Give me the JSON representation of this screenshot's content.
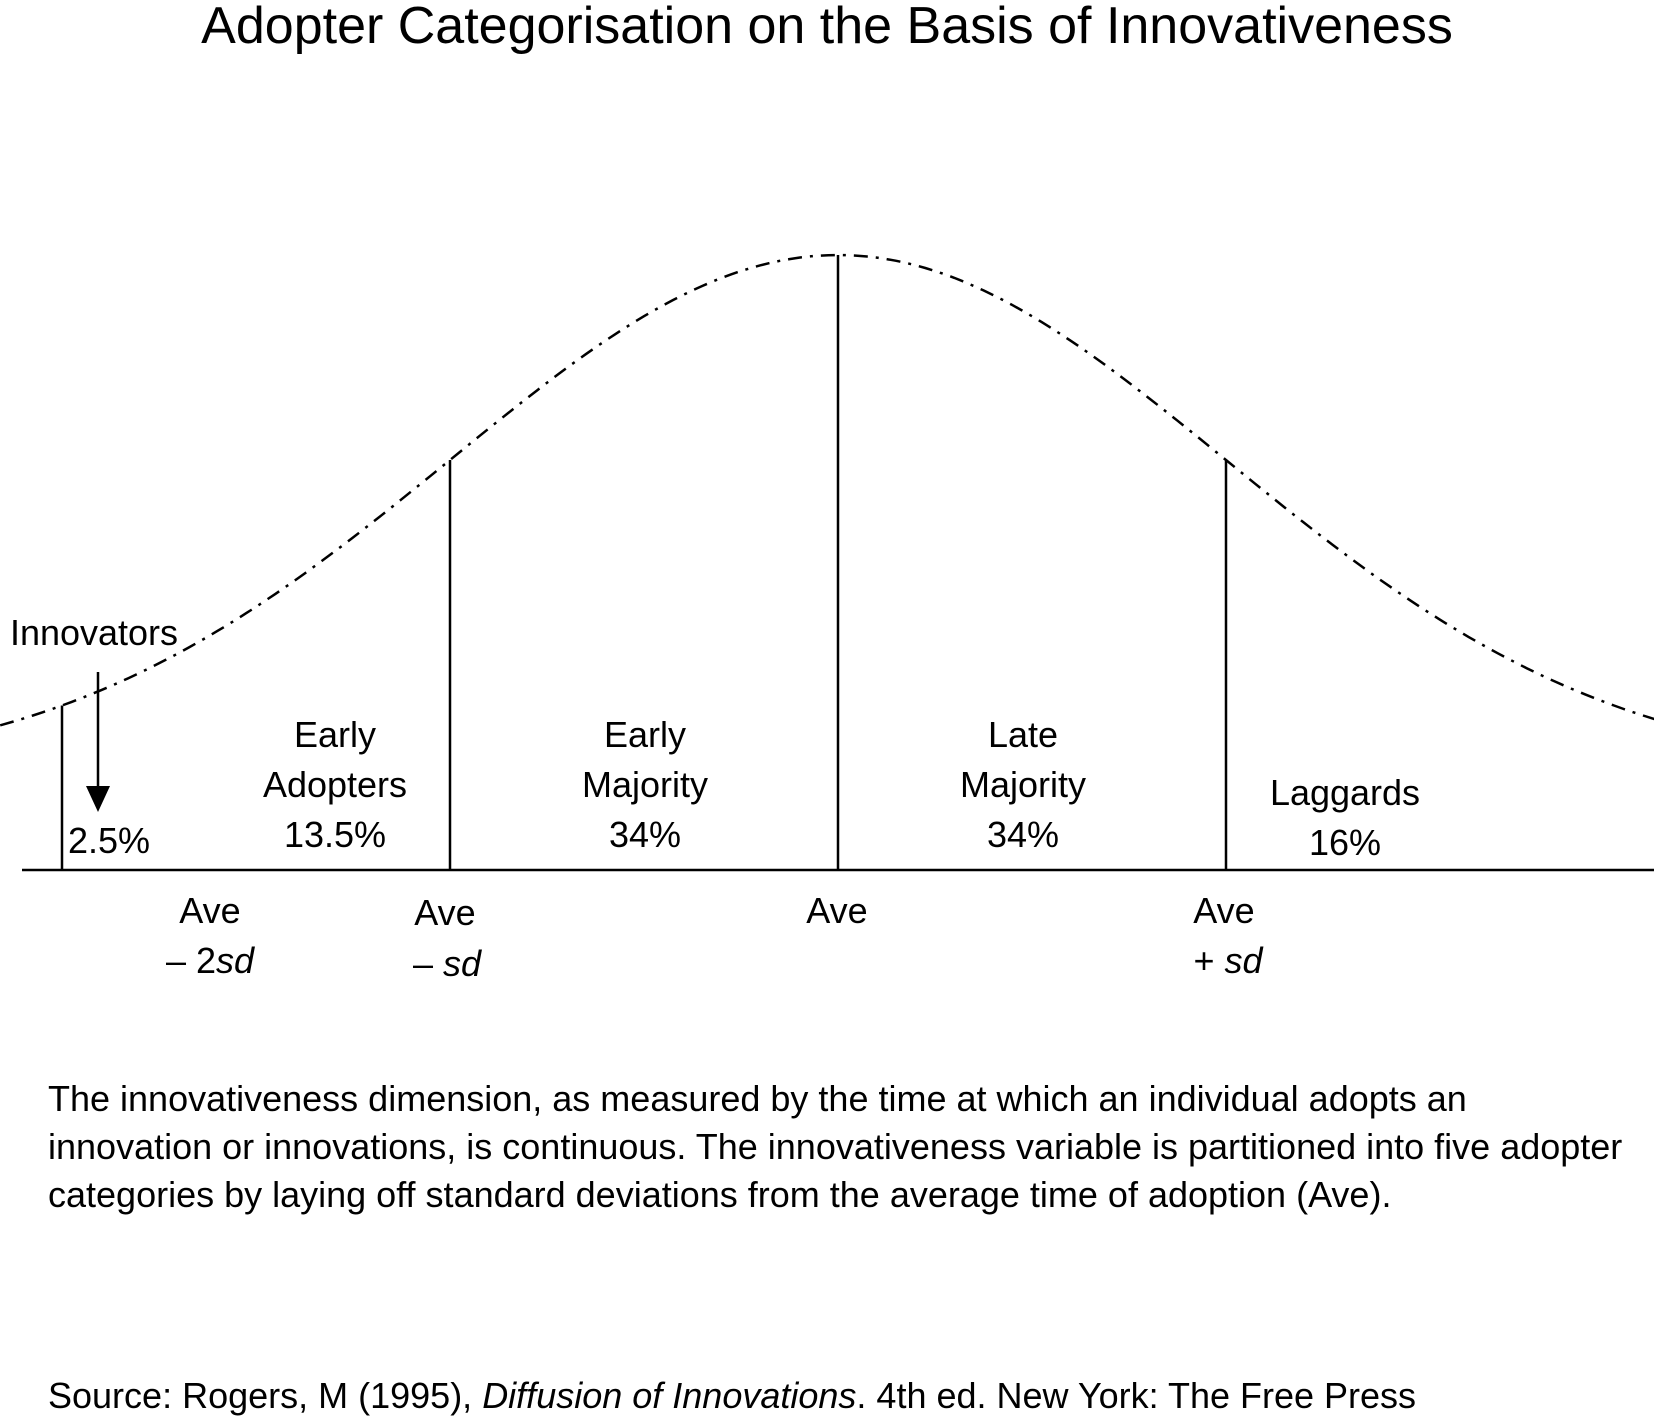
{
  "title": "Adopter Categorisation on the Basis of Innovativeness",
  "chart_data": {
    "type": "area",
    "curve": "normal distribution",
    "curve_style": "dash-dot",
    "categories": [
      {
        "name": "Innovators",
        "percent": "2.5%"
      },
      {
        "name_lines": [
          "Early",
          "Adopters"
        ],
        "percent": "13.5%"
      },
      {
        "name_lines": [
          "Early",
          "Majority"
        ],
        "percent": "34%"
      },
      {
        "name_lines": [
          "Late",
          "Majority"
        ],
        "percent": "34%"
      },
      {
        "name": "Laggards",
        "percent": "16%"
      }
    ],
    "boundaries": [
      {
        "value": -2,
        "label_lines": [
          "Ave",
          "– 2",
          "sd"
        ]
      },
      {
        "value": -1,
        "label_lines": [
          "Ave",
          "– ",
          "sd"
        ]
      },
      {
        "value": 0,
        "label_lines": [
          "Ave"
        ]
      },
      {
        "value": 1,
        "label_lines": [
          "Ave",
          "+ ",
          "sd"
        ]
      }
    ],
    "x_range": [
      -3,
      3
    ]
  },
  "caption": "The innovativeness dimension, as measured by the time at which an individual adopts an innovation or innovations, is continuous.  The innovativeness variable is partitioned into five adopter categories by laying off standard deviations from the average time of adoption (Ave).",
  "source": {
    "prefix": "Source: Rogers, M (1995), ",
    "book": "Diffusion of Innovations",
    "suffix": ". 4th ed. New York: The Free Press"
  }
}
